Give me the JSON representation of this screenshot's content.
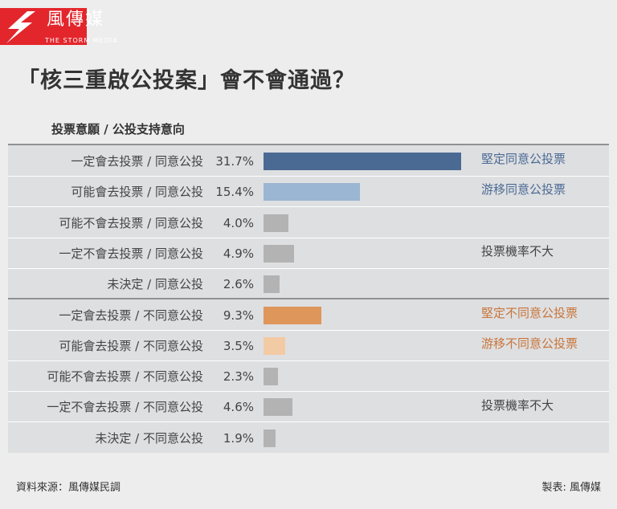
{
  "logo": {
    "name_cn": "風傳媒",
    "name_en": "THE STORM MEDIA"
  },
  "title": "「核三重啟公投案」會不會通過？",
  "column_header": "投票意願 / 公投支持意向",
  "chart_data": {
    "type": "bar",
    "orientation": "horizontal",
    "unit": "%",
    "categories": [
      "一定會去投票 / 同意公投",
      "可能會去投票 / 同意公投",
      "可能不會去投票 / 同意公投",
      "一定不會去投票 / 同意公投",
      "未決定 / 同意公投",
      "一定會去投票 / 不同意公投",
      "可能會去投票 / 不同意公投",
      "可能不會去投票 / 不同意公投",
      "一定不會去投票 / 不同意公投",
      "未決定 / 不同意公投"
    ],
    "values": [
      31.7,
      15.4,
      4.0,
      4.9,
      2.6,
      9.3,
      3.5,
      2.3,
      4.6,
      1.9
    ],
    "value_labels": [
      "31.7%",
      "15.4%",
      "4.0%",
      "4.9%",
      "2.6%",
      "9.3%",
      "3.5%",
      "2.3%",
      "4.6%",
      "1.9%"
    ],
    "bar_colors": [
      "#4a6a94",
      "#9ab6d2",
      "#b3b3b3",
      "#b3b3b3",
      "#b3b3b3",
      "#de965b",
      "#f2caa4",
      "#b3b3b3",
      "#b3b3b3",
      "#b3b3b3"
    ],
    "xlim": [
      0,
      31.7
    ],
    "annotations": [
      {
        "text": "堅定同意公投票",
        "rows": [
          0
        ],
        "color": "#4a6a94"
      },
      {
        "text": "游移同意公投票",
        "rows": [
          1
        ],
        "color": "#4a6a94"
      },
      {
        "text": "投票機率不大",
        "rows": [
          2,
          3,
          4
        ],
        "color": "#444444"
      },
      {
        "text": "堅定不同意公投票",
        "rows": [
          5
        ],
        "color": "#c8753a"
      },
      {
        "text": "游移不同意公投票",
        "rows": [
          6
        ],
        "color": "#c8753a"
      },
      {
        "text": "投票機率不大",
        "rows": [
          7,
          8,
          9
        ],
        "color": "#444444"
      }
    ]
  },
  "footer": {
    "source": "資料來源：風傳媒民調",
    "credit": "製表: 風傳媒"
  }
}
